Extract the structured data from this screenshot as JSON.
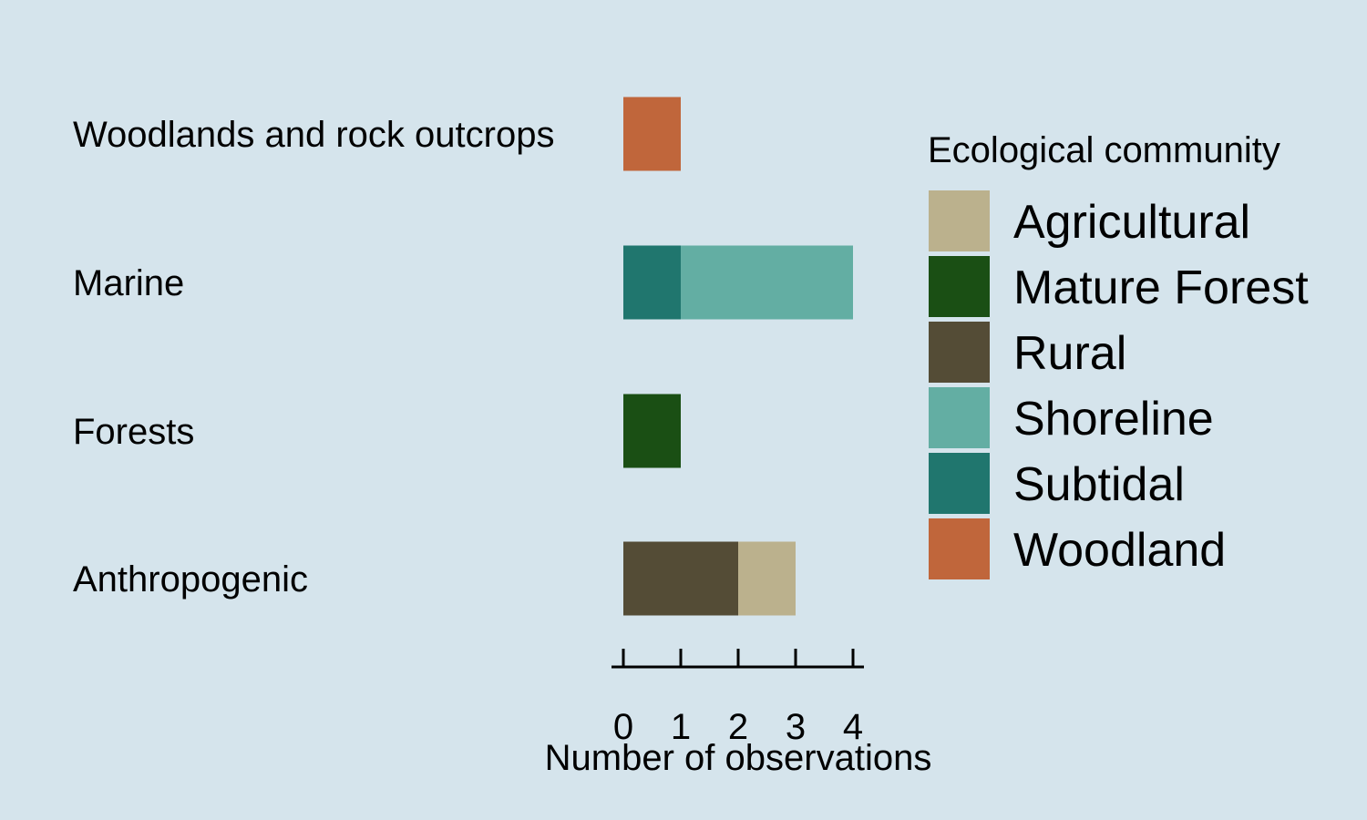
{
  "chart_data": {
    "type": "bar",
    "orientation": "horizontal",
    "stacked": true,
    "categories": [
      "Woodlands and rock outcrops",
      "Marine",
      "Forests",
      "Anthropogenic"
    ],
    "series": [
      {
        "name": "Rural",
        "color": "#544c36",
        "values": [
          0,
          0,
          0,
          2
        ]
      },
      {
        "name": "Agricultural",
        "color": "#bbb18d",
        "values": [
          0,
          0,
          0,
          1
        ]
      },
      {
        "name": "Mature Forest",
        "color": "#1a4f14",
        "values": [
          0,
          0,
          1,
          0
        ]
      },
      {
        "name": "Subtidal",
        "color": "#20766e",
        "values": [
          0,
          1,
          0,
          0
        ]
      },
      {
        "name": "Shoreline",
        "color": "#63aea3",
        "values": [
          0,
          3,
          0,
          0
        ]
      },
      {
        "name": "Woodland",
        "color": "#c0663b",
        "values": [
          1,
          0,
          0,
          0
        ]
      }
    ],
    "xlabel": "Number of observations",
    "ylabel": "",
    "xlim": [
      0,
      4
    ],
    "xticks": [
      "0",
      "1",
      "2",
      "3",
      "4"
    ],
    "grid": false,
    "legend": {
      "title": "Ecological community",
      "position": "right",
      "entries": [
        {
          "label": "Agricultural",
          "color": "#bbb18d"
        },
        {
          "label": "Mature Forest",
          "color": "#1a4f14"
        },
        {
          "label": "Rural",
          "color": "#544c36"
        },
        {
          "label": "Shoreline",
          "color": "#63aea3"
        },
        {
          "label": "Subtidal",
          "color": "#20766e"
        },
        {
          "label": "Woodland",
          "color": "#c0663b"
        }
      ]
    },
    "background_color": "#d5e4ec"
  }
}
